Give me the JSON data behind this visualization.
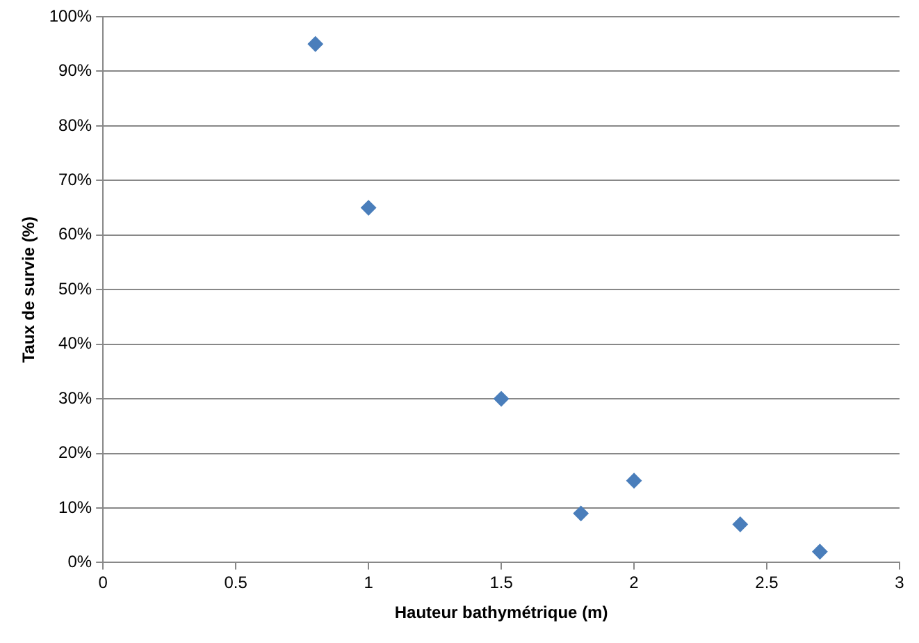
{
  "chart_data": {
    "type": "scatter",
    "xlabel": "Hauteur bathymétrique (m)",
    "ylabel": "Taux de survie (%)",
    "x": [
      0.8,
      1,
      1.5,
      1.8,
      2,
      2.4,
      2.7
    ],
    "series": [
      {
        "color": "#4a7ebb",
        "values": [
          95,
          65,
          30,
          9,
          15,
          7,
          2
        ]
      }
    ],
    "xlim": [
      0,
      3
    ],
    "xticks": [
      0,
      0.5,
      1,
      1.5,
      2,
      2.5,
      3
    ],
    "ylim": [
      0,
      100
    ],
    "yticks": [
      {
        "value": 0,
        "label": "0%"
      },
      {
        "value": 10,
        "label": "10%"
      },
      {
        "value": 20,
        "label": "20%"
      },
      {
        "value": 30,
        "label": "30%"
      },
      {
        "value": 40,
        "label": "40%"
      },
      {
        "value": 50,
        "label": "50%"
      },
      {
        "value": 60,
        "label": "60%"
      },
      {
        "value": 70,
        "label": "70%"
      },
      {
        "value": 80,
        "label": "80%"
      },
      {
        "value": 90,
        "label": "90%"
      },
      {
        "value": 100,
        "label": "100%"
      }
    ],
    "grid": "y",
    "marker": "diamond",
    "legend": false
  }
}
